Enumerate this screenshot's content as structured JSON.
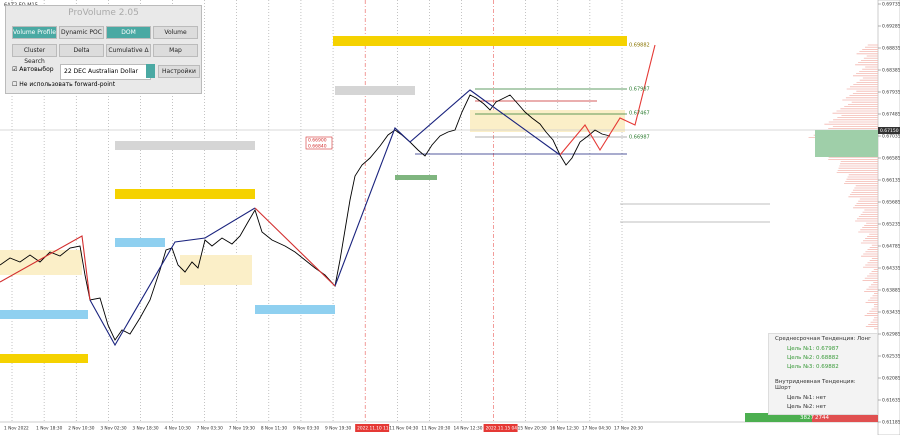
{
  "symbol": "6AZ2,FO,M15",
  "panel": {
    "title": "ProVolume 2.05",
    "buttons": [
      {
        "label": "Volume Profile",
        "active": true
      },
      {
        "label": "Dynamic POC",
        "active": false
      },
      {
        "label": "DOM",
        "active": true
      },
      {
        "label": "Volume",
        "active": false
      },
      {
        "label": "Cluster Search",
        "active": false
      },
      {
        "label": "Delta",
        "active": false
      },
      {
        "label": "Cumulative Δ",
        "active": false
      },
      {
        "label": "Map",
        "active": false
      }
    ],
    "auto_label": "Автовыбор",
    "instrument": "22 DEC Australian Dollar",
    "settings": "Настройки",
    "forward_label": "Не использовать forward-point"
  },
  "price_axis": [
    "0.69735",
    "0.69285",
    "0.68835",
    "0.68385",
    "0.67935",
    "0.67485",
    "0.67035",
    "0.66585",
    "0.66135",
    "0.65685",
    "0.65235",
    "0.64785",
    "0.64335",
    "0.63885",
    "0.63435",
    "0.62985",
    "0.62535",
    "0.62085",
    "0.61635",
    "0.61185"
  ],
  "current_price": "0.67150",
  "time_axis": [
    {
      "label": "1 Nov 2022",
      "highlight": false
    },
    {
      "label": "1 Nov 18:30",
      "highlight": false
    },
    {
      "label": "2 Nov 10:30",
      "highlight": false
    },
    {
      "label": "3 Nov 02:30",
      "highlight": false
    },
    {
      "label": "3 Nov 18:30",
      "highlight": false
    },
    {
      "label": "4 Nov 10:30",
      "highlight": false
    },
    {
      "label": "7 Nov 03:30",
      "highlight": false
    },
    {
      "label": "7 Nov 19:30",
      "highlight": false
    },
    {
      "label": "8 Nov 11:30",
      "highlight": false
    },
    {
      "label": "9 Nov 03:30",
      "highlight": false
    },
    {
      "label": "9 Nov 19:30",
      "highlight": false
    },
    {
      "label": "2022.11.10 11:30",
      "highlight": true
    },
    {
      "label": "11 Nov 04:30",
      "highlight": false
    },
    {
      "label": "11 Nov 20:30",
      "highlight": false
    },
    {
      "label": "14 Nov 12:30",
      "highlight": false
    },
    {
      "label": "2022.11.15 04:30",
      "highlight": true
    },
    {
      "label": "15 Nov 20:30",
      "highlight": false
    },
    {
      "label": "16 Nov 12:30",
      "highlight": false
    },
    {
      "label": "17 Nov 04:30",
      "highlight": false
    },
    {
      "label": "17 Nov 20:30",
      "highlight": false
    }
  ],
  "levels": [
    "0.69882",
    "0.67987",
    "0.67467",
    "0.66987"
  ],
  "box_levels": [
    "0.66900",
    "0.66840"
  ],
  "info": {
    "medium_term": "Среднесрочная Тенденция: Лонг",
    "medium_targets": [
      "Цель №1: 0.67987",
      "Цель №2: 0.68882",
      "Цель №3: 0.69882"
    ],
    "intraday": "Внутридневная Тенденция: Шорт",
    "intraday_targets": [
      "Цель №1: нет",
      "Цель №2: нет"
    ]
  },
  "footer": {
    "buy": "3827",
    "sell": "2744"
  }
}
